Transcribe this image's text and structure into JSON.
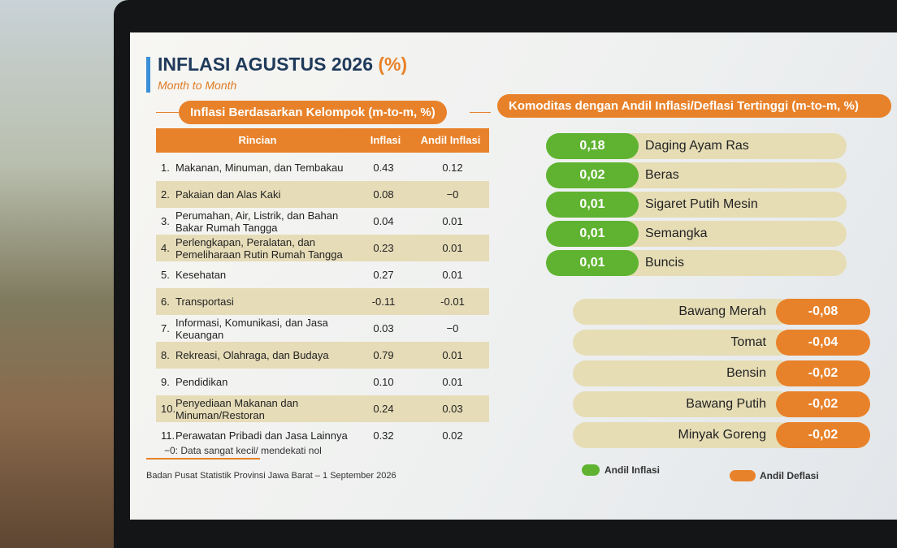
{
  "header": {
    "title": "INFLASI AGUSTUS 2026",
    "unit": "(%)",
    "subtitle": "Month to Month"
  },
  "table": {
    "title": "Inflasi Berdasarkan Kelompok (m-to-m, %)",
    "columns": [
      "Rincian",
      "Inflasi",
      "Andil Inflasi"
    ],
    "rows": [
      [
        "1.",
        "Makanan, Minuman, dan Tembakau",
        "0.43",
        "0.12"
      ],
      [
        "2.",
        "Pakaian dan Alas Kaki",
        "0.08",
        "−0"
      ],
      [
        "3.",
        "Perumahan, Air, Listrik, dan Bahan Bakar Rumah Tangga",
        "0.04",
        "0.01"
      ],
      [
        "4.",
        "Perlengkapan, Peralatan, dan Pemeliharaan Rutin Rumah Tangga",
        "0.23",
        "0.01"
      ],
      [
        "5.",
        "Kesehatan",
        "0.27",
        "0.01"
      ],
      [
        "6.",
        "Transportasi",
        "-0.11",
        "-0.01"
      ],
      [
        "7.",
        "Informasi, Komunikasi, dan Jasa Keuangan",
        "0.03",
        "−0"
      ],
      [
        "8.",
        "Rekreasi, Olahraga, dan Budaya",
        "0.79",
        "0.01"
      ],
      [
        "9.",
        "Pendidikan",
        "0.10",
        "0.01"
      ],
      [
        "10.",
        "Penyediaan Makanan dan Minuman/Restoran",
        "0.24",
        "0.03"
      ],
      [
        "11.",
        "Perawatan Pribadi dan Jasa Lainnya",
        "0.32",
        "0.02"
      ]
    ],
    "note": "−0: Data sangat kecil/ mendekati nol"
  },
  "source": "Badan Pusat Statistik Provinsi Jawa Barat – 1 September 2026",
  "commodities": {
    "title": "Komoditas dengan Andil Inflasi/Deflasi Tertinggi (m-to-m, %)",
    "inflation": [
      [
        "0,18",
        "Daging Ayam Ras"
      ],
      [
        "0,02",
        "Beras"
      ],
      [
        "0,01",
        "Sigaret Putih Mesin"
      ],
      [
        "0,01",
        "Semangka"
      ],
      [
        "0,01",
        "Buncis"
      ]
    ],
    "deflation": [
      [
        "Bawang Merah",
        "-0,08"
      ],
      [
        "Tomat",
        "-0,04"
      ],
      [
        "Bensin",
        "-0,02"
      ],
      [
        "Bawang Putih",
        "-0,02"
      ],
      [
        "Minyak Goreng",
        "-0,02"
      ]
    ],
    "legend": [
      "Andil Inflasi",
      "Andil Deflasi"
    ]
  }
}
